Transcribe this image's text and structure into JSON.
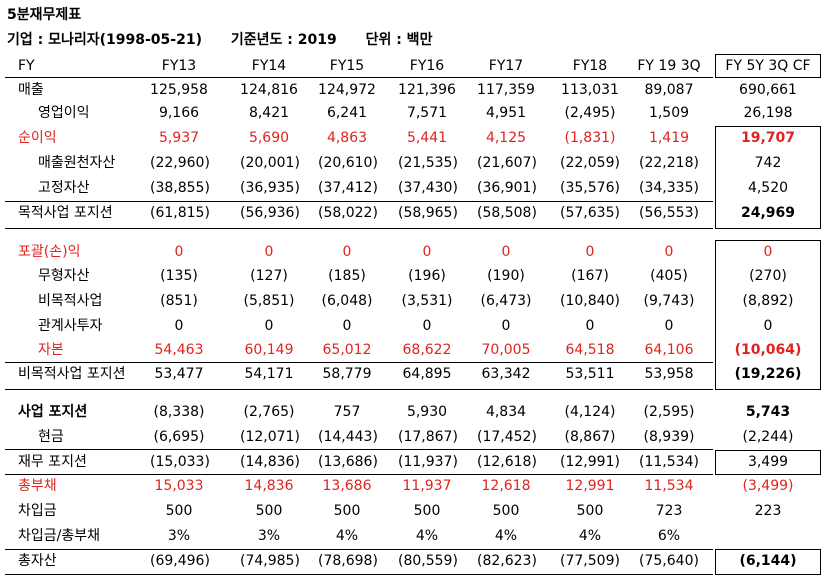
{
  "title": "5분재무제표",
  "info": {
    "company": "기업 : 모나리자(1998-05-21)",
    "base_year": "기준년도 : 2019",
    "unit": "단위 : 백만"
  },
  "columns": [
    "FY13",
    "FY14",
    "FY15",
    "FY16",
    "FY17",
    "FY18",
    "FY 19 3Q",
    "FY 5Y 3Q CF"
  ],
  "fy_label": "FY",
  "rows": [
    {
      "label": "매출",
      "style": "",
      "values": [
        "125,958",
        "124,816",
        "124,972",
        "121,396",
        "117,359",
        "113,031",
        "89,087",
        "690,661"
      ]
    },
    {
      "label": "영업이익",
      "style": "",
      "values": [
        "9,166",
        "8,421",
        "6,241",
        "7,571",
        "4,951",
        "(2,495)",
        "1,509",
        "26,198"
      ]
    },
    {
      "label": "순이익",
      "style": "red",
      "values": [
        "5,937",
        "5,690",
        "4,863",
        "5,441",
        "4,125",
        "(1,831)",
        "1,419",
        "19,707"
      ]
    },
    {
      "label": "매출원천자산",
      "style": "",
      "values": [
        "(22,960)",
        "(20,001)",
        "(20,610)",
        "(21,535)",
        "(21,607)",
        "(22,059)",
        "(22,218)",
        "742"
      ]
    },
    {
      "label": "고정자산",
      "style": "",
      "values": [
        "(38,855)",
        "(36,935)",
        "(37,412)",
        "(37,430)",
        "(36,901)",
        "(35,576)",
        "(34,335)",
        "4,520"
      ]
    },
    {
      "label": "목적사업 포지션",
      "style": "",
      "values": [
        "(61,815)",
        "(56,936)",
        "(58,022)",
        "(58,965)",
        "(58,508)",
        "(57,635)",
        "(56,553)",
        "24,969"
      ]
    },
    {
      "label": "포괄(손)익",
      "style": "red",
      "values": [
        "0",
        "0",
        "0",
        "0",
        "0",
        "0",
        "0",
        "0"
      ]
    },
    {
      "label": "무형자산",
      "style": "",
      "values": [
        "(135)",
        "(127)",
        "(185)",
        "(196)",
        "(190)",
        "(167)",
        "(405)",
        "(270)"
      ]
    },
    {
      "label": "비목적사업",
      "style": "",
      "values": [
        "(851)",
        "(5,851)",
        "(6,048)",
        "(3,531)",
        "(6,473)",
        "(10,840)",
        "(9,743)",
        "(8,892)"
      ]
    },
    {
      "label": "관계사투자",
      "style": "",
      "values": [
        "0",
        "0",
        "0",
        "0",
        "0",
        "0",
        "0",
        "0"
      ]
    },
    {
      "label": "자본",
      "style": "red",
      "values": [
        "54,463",
        "60,149",
        "65,012",
        "68,622",
        "70,005",
        "64,518",
        "64,106",
        "(10,064)"
      ]
    },
    {
      "label": "비목적사업 포지션",
      "style": "",
      "values": [
        "53,477",
        "54,171",
        "58,779",
        "64,895",
        "63,342",
        "53,511",
        "53,958",
        "(19,226)"
      ]
    },
    {
      "label": "사업 포지션",
      "style": "bold",
      "values": [
        "(8,338)",
        "(2,765)",
        "757",
        "5,930",
        "4,834",
        "(4,124)",
        "(2,595)",
        "5,743"
      ]
    },
    {
      "label": "현금",
      "style": "",
      "values": [
        "(6,695)",
        "(12,071)",
        "(14,443)",
        "(17,867)",
        "(17,452)",
        "(8,867)",
        "(8,939)",
        "(2,244)"
      ]
    },
    {
      "label": "재무 포지션",
      "style": "",
      "values": [
        "(15,033)",
        "(14,836)",
        "(13,686)",
        "(11,937)",
        "(12,618)",
        "(12,991)",
        "(11,534)",
        "3,499"
      ]
    },
    {
      "label": "총부채",
      "style": "red",
      "values": [
        "15,033",
        "14,836",
        "13,686",
        "11,937",
        "12,618",
        "12,991",
        "11,534",
        "(3,499)"
      ]
    },
    {
      "label": "차입금",
      "style": "",
      "values": [
        "500",
        "500",
        "500",
        "500",
        "500",
        "500",
        "723",
        "223"
      ]
    },
    {
      "label": "차입금/총부채",
      "style": "",
      "values": [
        "3%",
        "3%",
        "4%",
        "4%",
        "4%",
        "4%",
        "6%",
        ""
      ]
    },
    {
      "label": "총자산",
      "style": "",
      "values": [
        "(69,496)",
        "(74,985)",
        "(78,698)",
        "(80,559)",
        "(82,623)",
        "(77,509)",
        "(75,640)",
        "(6,144)"
      ]
    }
  ],
  "colors": {
    "accent_red": "#e0231f",
    "text": "#000000"
  }
}
